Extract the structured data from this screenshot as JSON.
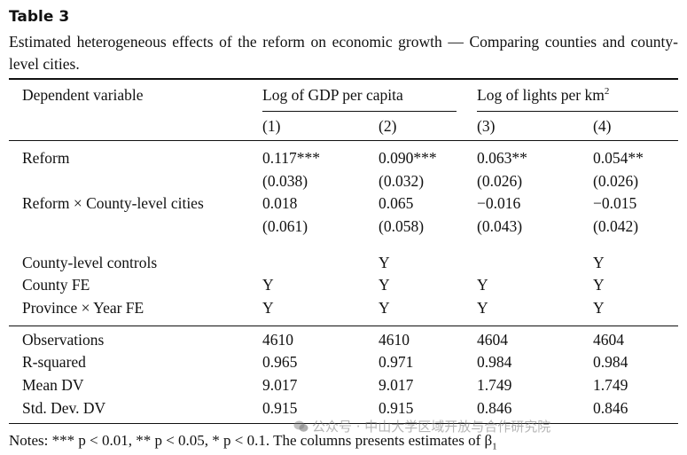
{
  "table_label": "Table 3",
  "caption": "Estimated heterogeneous effects of the reform on economic growth — Comparing counties and county-level cities.",
  "header": {
    "dep_var": "Dependent variable",
    "group1": "Log of GDP per capita",
    "group2_text": "Log of lights per km",
    "group2_sup": "2",
    "cols": [
      "(1)",
      "(2)",
      "(3)",
      "(4)"
    ]
  },
  "rows": {
    "reform": {
      "label": "Reform",
      "vals": [
        "0.117***",
        "0.090***",
        "0.063**",
        "0.054**"
      ],
      "se": [
        "(0.038)",
        "(0.032)",
        "(0.026)",
        "(0.026)"
      ]
    },
    "interaction": {
      "label": "Reform × County-level cities",
      "vals": [
        "0.018",
        "0.065",
        "−0.016",
        "−0.015"
      ],
      "se": [
        "(0.061)",
        "(0.058)",
        "(0.043)",
        "(0.042)"
      ]
    },
    "controls": {
      "label": "County-level controls",
      "vals": [
        "",
        "Y",
        "",
        "Y"
      ]
    },
    "county_fe": {
      "label": "County FE",
      "vals": [
        "Y",
        "Y",
        "Y",
        "Y"
      ]
    },
    "prov_year_fe": {
      "label": "Province × Year FE",
      "vals": [
        "Y",
        "Y",
        "Y",
        "Y"
      ]
    },
    "obs": {
      "label": "Observations",
      "vals": [
        "4610",
        "4610",
        "4604",
        "4604"
      ]
    },
    "r2": {
      "label": "R-squared",
      "vals": [
        "0.965",
        "0.971",
        "0.984",
        "0.984"
      ]
    },
    "mean_dv": {
      "label": "Mean DV",
      "vals": [
        "9.017",
        "9.017",
        "1.749",
        "1.749"
      ]
    },
    "sd_dv": {
      "label": "Std. Dev. DV",
      "vals": [
        "0.915",
        "0.915",
        "0.846",
        "0.846"
      ]
    }
  },
  "footnote": "Notes: *** p < 0.01, ** p < 0.05, * p < 0.1. The columns presents estimates of β",
  "footnote_sub": "1",
  "watermark": "公众号 · 中山大学区域开放与合作研究院"
}
